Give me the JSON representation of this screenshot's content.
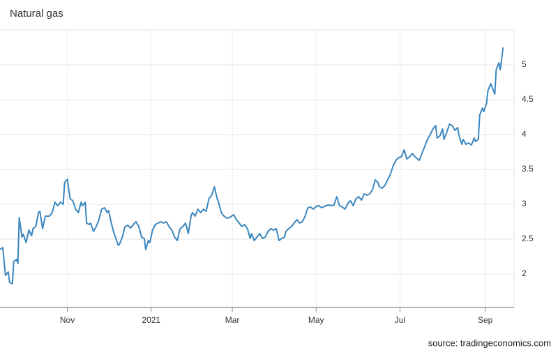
{
  "chart_data": {
    "type": "line",
    "title": "Natural gas",
    "source": "source: tradingeconomics.com",
    "grid": true,
    "xlim": [
      0,
      374
    ],
    "ylim": [
      1.52,
      5.5
    ],
    "yticks": [
      2,
      2.5,
      3,
      3.5,
      4,
      4.5,
      5
    ],
    "xticks": [
      {
        "value": 49,
        "label": "Nov"
      },
      {
        "value": 110,
        "label": "2021"
      },
      {
        "value": 169,
        "label": "Mar"
      },
      {
        "value": 230,
        "label": "May"
      },
      {
        "value": 291,
        "label": "Jul"
      },
      {
        "value": 353,
        "label": "Sep"
      }
    ],
    "series": [
      {
        "name": "Natural gas",
        "color": "#3a87c0",
        "x": [
          0,
          2,
          4,
          6,
          7,
          9,
          10,
          12,
          13,
          14,
          16,
          17,
          19,
          21,
          23,
          24,
          26,
          28,
          29,
          31,
          33,
          36,
          38,
          40,
          42,
          44,
          46,
          47,
          49,
          51,
          53,
          55,
          57,
          59,
          60,
          62,
          63,
          65,
          66,
          68,
          70,
          72,
          74,
          76,
          78,
          79,
          81,
          83,
          84,
          86,
          87,
          89,
          91,
          93,
          95,
          97,
          99,
          101,
          103,
          105,
          106,
          108,
          109,
          111,
          113,
          115,
          117,
          119,
          121,
          123,
          125,
          127,
          129,
          131,
          133,
          135,
          137,
          139,
          140,
          142,
          144,
          146,
          148,
          150,
          152,
          154,
          156,
          158,
          159,
          161,
          163,
          165,
          167,
          170,
          172,
          174,
          176,
          178,
          180,
          182,
          183,
          185,
          187,
          189,
          191,
          193,
          195,
          197,
          199,
          201,
          203,
          205,
          207,
          208,
          210,
          212,
          214,
          216,
          218,
          220,
          222,
          224,
          226,
          228,
          230,
          232,
          234,
          236,
          239,
          241,
          243,
          245,
          247,
          249,
          251,
          253,
          255,
          257,
          259,
          261,
          263,
          265,
          267,
          269,
          271,
          273,
          275,
          276,
          278,
          280,
          282,
          284,
          286,
          288,
          290,
          292,
          294,
          296,
          298,
          300,
          302,
          305,
          307,
          309,
          311,
          313,
          315,
          317,
          318,
          320,
          322,
          323,
          325,
          327,
          329,
          331,
          333,
          334,
          336,
          337,
          339,
          341,
          343,
          345,
          346,
          348,
          349,
          351,
          352,
          354,
          355,
          357,
          358,
          360,
          361,
          363,
          364,
          366
        ],
        "values": [
          2.35,
          2.38,
          1.98,
          2.03,
          1.88,
          1.86,
          2.18,
          2.21,
          2.15,
          2.81,
          2.53,
          2.57,
          2.45,
          2.63,
          2.55,
          2.65,
          2.68,
          2.88,
          2.9,
          2.65,
          2.83,
          2.83,
          2.88,
          3.03,
          2.98,
          3.03,
          3.0,
          3.31,
          3.36,
          3.08,
          3.05,
          2.93,
          2.88,
          3.03,
          2.98,
          3.03,
          2.73,
          2.71,
          2.73,
          2.61,
          2.68,
          2.78,
          2.93,
          2.95,
          2.88,
          2.91,
          2.73,
          2.58,
          2.53,
          2.41,
          2.43,
          2.53,
          2.68,
          2.7,
          2.66,
          2.71,
          2.75,
          2.68,
          2.53,
          2.51,
          2.35,
          2.48,
          2.45,
          2.63,
          2.71,
          2.73,
          2.75,
          2.73,
          2.75,
          2.68,
          2.63,
          2.53,
          2.48,
          2.65,
          2.68,
          2.73,
          2.58,
          2.83,
          2.88,
          2.83,
          2.93,
          2.88,
          2.93,
          2.9,
          3.08,
          3.13,
          3.25,
          3.08,
          3.03,
          2.88,
          2.83,
          2.8,
          2.81,
          2.85,
          2.78,
          2.73,
          2.68,
          2.71,
          2.65,
          2.51,
          2.58,
          2.48,
          2.53,
          2.58,
          2.51,
          2.53,
          2.61,
          2.65,
          2.63,
          2.65,
          2.48,
          2.51,
          2.53,
          2.61,
          2.65,
          2.68,
          2.73,
          2.78,
          2.73,
          2.75,
          2.83,
          2.95,
          2.96,
          2.93,
          2.97,
          2.98,
          2.95,
          2.97,
          2.99,
          2.98,
          2.99,
          3.11,
          2.98,
          2.96,
          2.93,
          3.01,
          3.05,
          2.98,
          3.08,
          3.11,
          3.06,
          3.15,
          3.13,
          3.15,
          3.21,
          3.35,
          3.31,
          3.25,
          3.23,
          3.27,
          3.35,
          3.43,
          3.55,
          3.63,
          3.67,
          3.68,
          3.78,
          3.65,
          3.68,
          3.73,
          3.68,
          3.63,
          3.73,
          3.83,
          3.93,
          4.0,
          4.08,
          4.13,
          3.95,
          3.98,
          4.08,
          3.93,
          4.03,
          4.15,
          4.13,
          4.06,
          4.1,
          3.98,
          3.86,
          3.93,
          3.86,
          3.88,
          3.85,
          3.95,
          3.9,
          3.93,
          4.28,
          4.38,
          4.33,
          4.45,
          4.63,
          4.73,
          4.68,
          4.58,
          4.93,
          5.03,
          4.93,
          5.25
        ]
      }
    ]
  }
}
